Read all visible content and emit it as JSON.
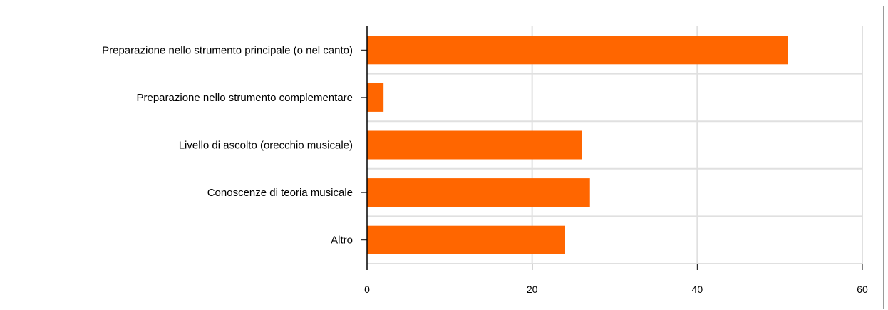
{
  "chart_data": {
    "type": "bar",
    "orientation": "horizontal",
    "categories": [
      "Preparazione nello strumento principale (o nel canto)",
      "Preparazione nello strumento complementare",
      "Livello di ascolto (orecchio musicale)",
      "Conoscenze di teoria musicale",
      "Altro"
    ],
    "values": [
      51,
      2,
      26,
      27,
      24
    ],
    "xlim": [
      0,
      60
    ],
    "xticks": [
      "0",
      "20",
      "40",
      "60"
    ],
    "grid": true,
    "legend": "none",
    "title": "",
    "xlabel": "",
    "ylabel": "",
    "bar_color": "#ff6600",
    "grid_color": "#e0e0e0",
    "axis_color": "#000000"
  }
}
